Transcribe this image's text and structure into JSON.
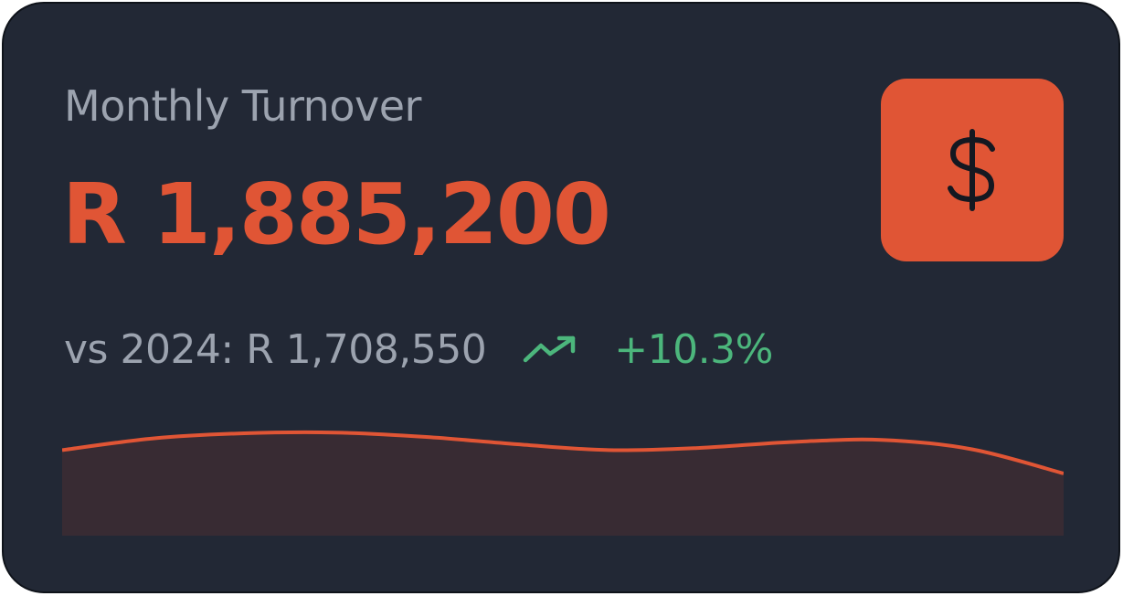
{
  "card": {
    "title": "Monthly Turnover",
    "value": "R 1,885,200",
    "comparison": "vs 2024: R 1,708,550",
    "change": "+10.3%",
    "icon": "dollar-icon",
    "trend_icon": "trending-up-icon"
  },
  "colors": {
    "background": "#222835",
    "accent": "#e05535",
    "positive": "#4cb67c",
    "muted_text": "#9ca3af",
    "sparkline_fill": "#382b33"
  },
  "chart_data": {
    "type": "area",
    "values": [
      0.28,
      0.12,
      0.05,
      0.04,
      0.1,
      0.2,
      0.28,
      0.25,
      0.17,
      0.14,
      0.27,
      0.6
    ],
    "title": "",
    "xlabel": "",
    "ylabel": ""
  }
}
